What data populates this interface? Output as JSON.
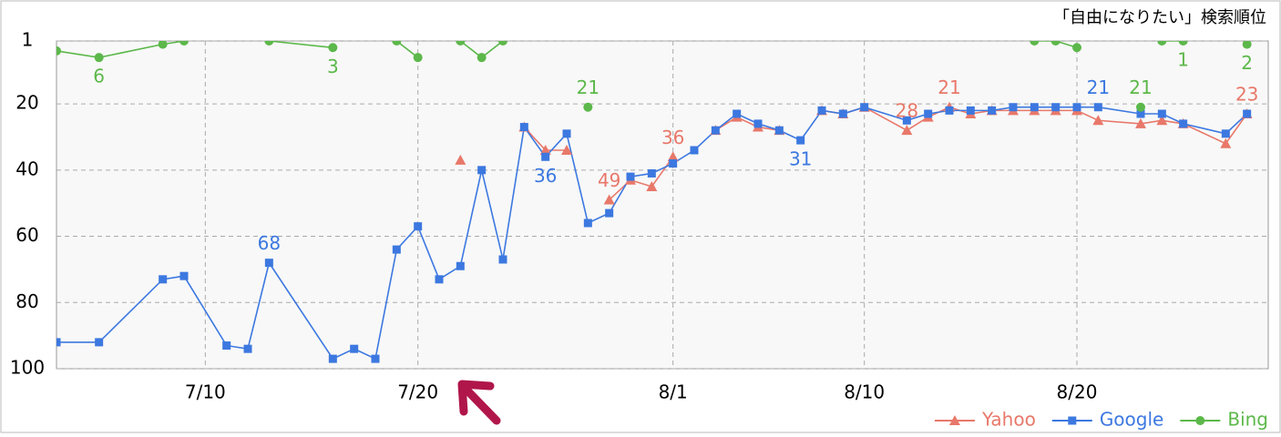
{
  "chart_data": {
    "type": "line",
    "title": "「自由になりたい」検索順位",
    "xlim": [
      "7/3",
      "8/29"
    ],
    "xticks": [
      "7/10",
      "7/20",
      "8/1",
      "8/10",
      "8/20"
    ],
    "ylim": [
      100,
      1
    ],
    "yticks": [
      1,
      20,
      40,
      60,
      80,
      100
    ],
    "grid": true,
    "legend": "bottom-right",
    "series": [
      {
        "name": "Yahoo",
        "color": "#e8786a",
        "marker": "triangle",
        "x": [
          "7/22",
          null,
          "7/25",
          "7/26",
          "7/27",
          null,
          "7/29",
          "7/30",
          "7/31",
          "8/1",
          null,
          "8/3",
          "8/4",
          "8/5",
          "8/6",
          null,
          "8/8",
          "8/9",
          "8/10",
          "8/12",
          "8/13",
          "8/14",
          "8/15",
          "8/16",
          "8/17",
          "8/18",
          "8/19",
          "8/20",
          "8/21",
          "8/23",
          "8/24",
          "8/25",
          "8/27",
          "8/28"
        ],
        "values": [
          37,
          null,
          27,
          34,
          34,
          null,
          49,
          43,
          45,
          36,
          null,
          28,
          24,
          27,
          28,
          null,
          22,
          23,
          21,
          28,
          24,
          21,
          23,
          22,
          22,
          22,
          22,
          22,
          25,
          26,
          25,
          26,
          32,
          23
        ],
        "value_labels": [
          null,
          null,
          null,
          null,
          null,
          null,
          "49",
          null,
          null,
          "36",
          null,
          null,
          null,
          null,
          null,
          null,
          null,
          null,
          null,
          "28",
          null,
          "21",
          null,
          null,
          null,
          null,
          null,
          null,
          null,
          null,
          null,
          null,
          null,
          "23"
        ]
      },
      {
        "name": "Google",
        "color": "#3c78e0",
        "marker": "square",
        "x": [
          "7/3",
          "7/5",
          "7/8",
          "7/9",
          "7/11",
          "7/12",
          "7/13",
          "7/16",
          "7/17",
          "7/18",
          "7/19",
          "7/20",
          "7/21",
          "7/22",
          "7/23",
          "7/24",
          "7/25",
          "7/26",
          "7/27",
          "7/28",
          "7/29",
          "7/30",
          "7/31",
          "8/1",
          "8/2",
          "8/3",
          "8/4",
          "8/5",
          "8/6",
          "8/7",
          "8/8",
          "8/9",
          "8/10",
          "8/12",
          "8/13",
          "8/14",
          "8/15",
          "8/16",
          "8/17",
          "8/18",
          "8/19",
          "8/20",
          "8/21",
          "8/23",
          "8/24",
          "8/25",
          "8/27",
          "8/28"
        ],
        "values": [
          92,
          92,
          73,
          72,
          93,
          94,
          68,
          97,
          94,
          97,
          64,
          57,
          73,
          69,
          40,
          67,
          27,
          36,
          29,
          56,
          53,
          42,
          41,
          38,
          34,
          28,
          23,
          26,
          28,
          31,
          22,
          23,
          21,
          25,
          23,
          22,
          22,
          22,
          21,
          21,
          21,
          21,
          21,
          23,
          23,
          26,
          29,
          23
        ],
        "value_labels": [
          null,
          null,
          null,
          null,
          null,
          null,
          "68",
          null,
          null,
          null,
          null,
          null,
          null,
          null,
          null,
          null,
          null,
          "36",
          null,
          null,
          null,
          null,
          null,
          null,
          null,
          null,
          null,
          null,
          null,
          "31",
          null,
          null,
          null,
          null,
          null,
          null,
          null,
          null,
          null,
          null,
          null,
          null,
          "21",
          null,
          null,
          null,
          null,
          null
        ]
      },
      {
        "name": "Bing",
        "color": "#5cb84a",
        "marker": "circle",
        "x": [
          "7/3",
          "7/5",
          "7/8",
          "7/9",
          null,
          "7/13",
          "7/16",
          null,
          "7/19",
          "7/20",
          null,
          "7/22",
          "7/23",
          "7/24",
          null,
          "7/28",
          null,
          "8/18",
          "8/19",
          "8/20",
          null,
          "8/23",
          null,
          "8/24",
          "8/25",
          null,
          "8/28"
        ],
        "values": [
          4,
          6,
          2,
          1,
          null,
          1,
          3,
          null,
          1,
          6,
          null,
          1,
          6,
          1,
          null,
          21,
          null,
          1,
          1,
          3,
          null,
          21,
          null,
          1,
          1,
          null,
          2
        ],
        "value_labels": [
          null,
          "6",
          null,
          null,
          null,
          null,
          "3",
          null,
          null,
          null,
          null,
          null,
          null,
          null,
          null,
          "21",
          null,
          null,
          null,
          null,
          null,
          "21",
          null,
          null,
          "1",
          null,
          "2"
        ]
      }
    ]
  }
}
